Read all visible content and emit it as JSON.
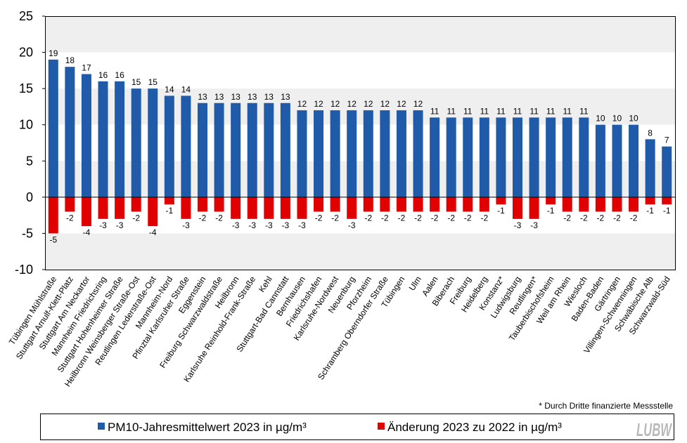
{
  "chart_data": {
    "type": "bar",
    "categories": [
      "Tübingen Mühlstraße",
      "Stuttgart Arnulf-Klett-Platz",
      "Stuttgart Am Neckartor",
      "Mannheim Friedrichsring",
      "Stuttgart Hohenheimer Straße",
      "Heilbronn Weinsberger Straße-Ost",
      "Reutlingen Lederstraße-Ost",
      "Mannheim-Nord",
      "Pfinztal Karlsruher Straße",
      "Eggenstein",
      "Freiburg Schwarzwaldstraße",
      "Heilbronn",
      "Karlsruhe Reinhold-Frank-Straße",
      "Kehl",
      "Stuttgart-Bad Cannstatt",
      "Bernhausen",
      "Friedrichshafen",
      "Karlsruhe-Nordwest",
      "Neuenburg",
      "Pforzheim",
      "Schramberg Oberndorfer Straße",
      "Tübingen",
      "Ulm",
      "Aalen",
      "Biberach",
      "Freiburg",
      "Heidelberg",
      "Konstanz*",
      "Ludwigsburg",
      "Reutlingen*",
      "Tauberbischofsheim",
      "Weil am Rhein",
      "Wiesloch",
      "Baden-Baden",
      "Gärtringen",
      "Villingen-Schwenningen",
      "Schwäbische Alb",
      "Schwarzwald-Süd"
    ],
    "series": [
      {
        "name": "PM10-Jahresmittelwert 2023 in µg/m³",
        "color": "#1f5ba8",
        "values": [
          19,
          18,
          17,
          16,
          16,
          15,
          15,
          14,
          14,
          13,
          13,
          13,
          13,
          13,
          13,
          12,
          12,
          12,
          12,
          12,
          12,
          12,
          12,
          11,
          11,
          11,
          11,
          11,
          11,
          11,
          11,
          11,
          11,
          10,
          10,
          10,
          8,
          7
        ]
      },
      {
        "name": "Änderung 2023 zu 2022 in µg/m³",
        "color": "#e10000",
        "values": [
          -5,
          -2,
          -4,
          -3,
          -3,
          -2,
          -4,
          -1,
          -3,
          -2,
          -2,
          -3,
          -3,
          -3,
          -3,
          -3,
          -2,
          -2,
          -3,
          -2,
          -2,
          -2,
          -2,
          -2,
          -2,
          -2,
          -2,
          -1,
          -3,
          -3,
          -1,
          -2,
          -2,
          -2,
          -2,
          -2,
          -1,
          -1
        ]
      }
    ],
    "ylim": [
      -10,
      25
    ],
    "yticks": [
      25,
      20,
      15,
      10,
      5,
      0,
      -5,
      -10
    ],
    "grid": false,
    "legend_position": "bottom"
  },
  "footnote": "* Durch Dritte finanzierte Messstelle",
  "logo": "LUBW"
}
